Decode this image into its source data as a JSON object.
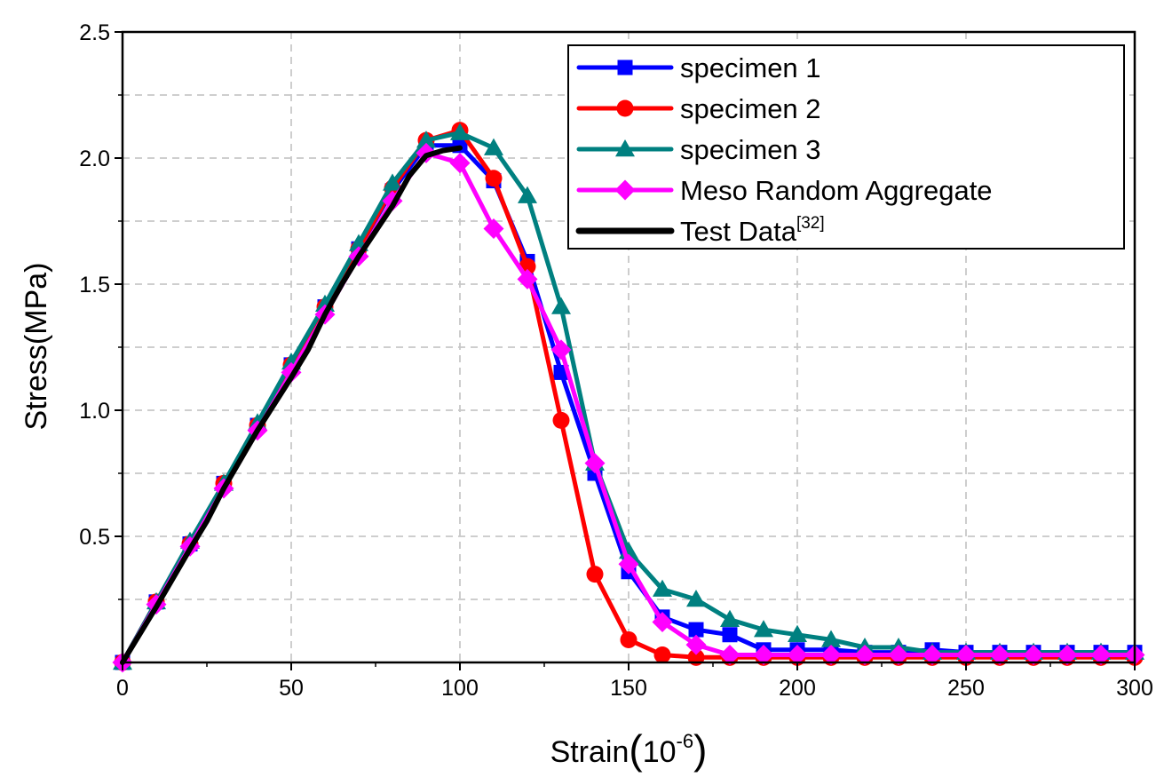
{
  "chart_data": {
    "type": "line",
    "title": "",
    "xlabel": "Strain",
    "xlabel_unit": "10",
    "xlabel_unit_exp": "-6",
    "ylabel": "Stress(MPa)",
    "xlim": [
      0,
      300
    ],
    "ylim": [
      0,
      2.5
    ],
    "x_ticks": [
      0,
      50,
      100,
      150,
      200,
      250,
      300
    ],
    "x_tick_labels": [
      "0",
      "50",
      "100",
      "150",
      "200",
      "250",
      "300"
    ],
    "y_ticks": [
      0.5,
      1.0,
      1.5,
      2.0,
      2.5
    ],
    "y_tick_labels": [
      "0.5",
      "1.0",
      "1.5",
      "2.0",
      "2.5"
    ],
    "grid": true,
    "legend_position": "top-right",
    "series": [
      {
        "name": "specimen 1",
        "color": "#0000ff",
        "marker": "square",
        "x": [
          0,
          10,
          20,
          30,
          40,
          50,
          60,
          70,
          80,
          90,
          100,
          110,
          120,
          130,
          140,
          150,
          160,
          170,
          180,
          190,
          200,
          210,
          220,
          230,
          240,
          250,
          260,
          270,
          280,
          290,
          300
        ],
        "y": [
          0,
          0.24,
          0.47,
          0.71,
          0.94,
          1.18,
          1.41,
          1.64,
          1.87,
          2.05,
          2.05,
          1.91,
          1.59,
          1.15,
          0.75,
          0.36,
          0.18,
          0.13,
          0.11,
          0.05,
          0.05,
          0.05,
          0.04,
          0.04,
          0.05,
          0.04,
          0.04,
          0.04,
          0.04,
          0.04,
          0.04
        ]
      },
      {
        "name": "specimen 2",
        "color": "#ff0000",
        "marker": "circle",
        "x": [
          0,
          10,
          20,
          30,
          40,
          50,
          60,
          70,
          80,
          90,
          100,
          110,
          120,
          130,
          140,
          150,
          160,
          170,
          180,
          190,
          200,
          210,
          220,
          230,
          240,
          250,
          260,
          270,
          280,
          290,
          300
        ],
        "y": [
          0,
          0.24,
          0.47,
          0.71,
          0.94,
          1.18,
          1.41,
          1.64,
          1.88,
          2.07,
          2.11,
          1.92,
          1.57,
          0.96,
          0.35,
          0.09,
          0.03,
          0.02,
          0.02,
          0.02,
          0.02,
          0.02,
          0.02,
          0.02,
          0.02,
          0.02,
          0.02,
          0.02,
          0.02,
          0.02,
          0.02
        ]
      },
      {
        "name": "specimen 3",
        "color": "#008080",
        "marker": "triangle",
        "x": [
          0,
          10,
          20,
          30,
          40,
          50,
          60,
          70,
          80,
          90,
          100,
          110,
          120,
          130,
          140,
          150,
          160,
          170,
          180,
          190,
          200,
          210,
          220,
          230,
          240,
          250,
          260,
          270,
          280,
          290,
          300
        ],
        "y": [
          0,
          0.24,
          0.48,
          0.71,
          0.95,
          1.19,
          1.42,
          1.66,
          1.9,
          2.07,
          2.1,
          2.04,
          1.85,
          1.41,
          0.79,
          0.44,
          0.29,
          0.25,
          0.17,
          0.13,
          0.11,
          0.09,
          0.06,
          0.06,
          0.04,
          0.04,
          0.04,
          0.04,
          0.04,
          0.04,
          0.04
        ]
      },
      {
        "name": "Meso Random Aggregate",
        "color": "#ff00ff",
        "marker": "diamond",
        "x": [
          0,
          10,
          20,
          30,
          40,
          50,
          60,
          70,
          80,
          90,
          100,
          110,
          120,
          130,
          140,
          150,
          160,
          170,
          180,
          190,
          200,
          210,
          220,
          230,
          240,
          250,
          260,
          270,
          280,
          290,
          300
        ],
        "y": [
          0,
          0.23,
          0.46,
          0.69,
          0.92,
          1.15,
          1.38,
          1.61,
          1.83,
          2.02,
          1.98,
          1.72,
          1.52,
          1.24,
          0.79,
          0.39,
          0.16,
          0.07,
          0.03,
          0.03,
          0.03,
          0.03,
          0.03,
          0.03,
          0.03,
          0.03,
          0.03,
          0.03,
          0.03,
          0.03,
          0.03
        ]
      },
      {
        "name": "Test Data",
        "name_superscript": "[32]",
        "color": "#000000",
        "marker": "none",
        "x": [
          0,
          10,
          20,
          25,
          30,
          40,
          50,
          55,
          60,
          65,
          70,
          75,
          80,
          85,
          90,
          95,
          100
        ],
        "y": [
          0,
          0.22,
          0.45,
          0.56,
          0.69,
          0.92,
          1.13,
          1.24,
          1.38,
          1.5,
          1.61,
          1.71,
          1.81,
          1.93,
          2.01,
          2.03,
          2.04
        ]
      }
    ]
  }
}
